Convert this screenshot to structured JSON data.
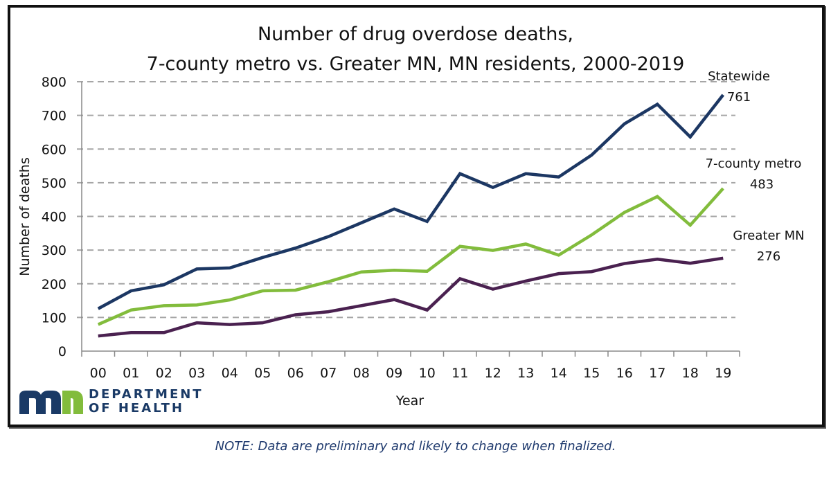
{
  "chart_data": {
    "type": "line",
    "title": [
      "Number of drug overdose deaths,",
      "7-county metro vs. Greater MN,  MN residents, 2000-2019"
    ],
    "xlabel": "Year",
    "ylabel": "Number of deaths",
    "categories": [
      "00",
      "01",
      "02",
      "03",
      "04",
      "05",
      "06",
      "07",
      "08",
      "09",
      "10",
      "11",
      "12",
      "13",
      "14",
      "15",
      "16",
      "17",
      "18",
      "19"
    ],
    "ylim": [
      0,
      800
    ],
    "yticks": [
      0,
      100,
      200,
      300,
      400,
      500,
      600,
      700,
      800
    ],
    "grid": "horizontal dashed",
    "series": [
      {
        "name": "Statewide",
        "end_label": "761",
        "color": "#1c3763",
        "values": [
          126,
          179,
          197,
          244,
          247,
          278,
          306,
          340,
          381,
          422,
          385,
          527,
          486,
          527,
          517,
          582,
          675,
          733,
          636,
          761
        ]
      },
      {
        "name": "7-county metro",
        "end_label": "483",
        "color": "#82bc3c",
        "values": [
          79,
          122,
          135,
          137,
          152,
          179,
          181,
          206,
          235,
          240,
          237,
          311,
          299,
          318,
          285,
          345,
          412,
          459,
          374,
          483
        ]
      },
      {
        "name": "Greater MN",
        "end_label": "276",
        "color": "#4a2150",
        "values": [
          45,
          55,
          55,
          84,
          79,
          84,
          108,
          117,
          135,
          153,
          122,
          215,
          184,
          208,
          230,
          236,
          260,
          273,
          261,
          276
        ]
      }
    ]
  },
  "logo": {
    "line1": "DEPARTMENT",
    "line2": "OF HEALTH",
    "colors": [
      "#1a3a66",
      "#82bc3c"
    ]
  },
  "note": "NOTE: Data are preliminary and likely to change when finalized."
}
